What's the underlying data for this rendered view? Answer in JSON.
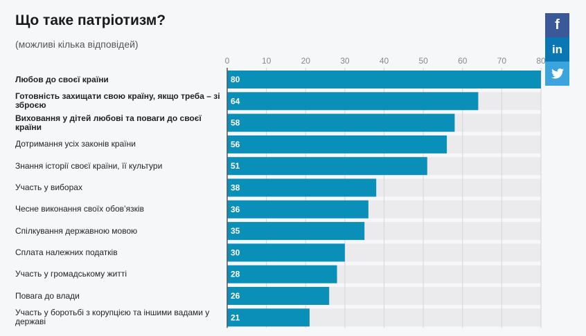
{
  "header": {
    "title": "Що таке патріотизм?",
    "subtitle": "(можливі кілька відповідей)"
  },
  "social": {
    "facebook": "f",
    "linkedin": "in",
    "twitter_icon": "twitter-icon"
  },
  "colors": {
    "bar": "#0a8fb8",
    "track": "#ebebed",
    "axis": "#555555"
  },
  "chart_data": {
    "type": "bar",
    "orientation": "horizontal",
    "title": "Що таке патріотизм?",
    "subtitle": "(можливі кілька відповідей)",
    "xlim": [
      0,
      80
    ],
    "x_ticks": [
      0,
      10,
      20,
      30,
      40,
      50,
      60,
      70,
      80
    ],
    "grid": true,
    "categories": [
      "Любов до своєї країни",
      "Готовність захищати свою країну, якщо треба – зі зброєю",
      "Виховання у дітей любові та поваги до своєї країни",
      "Дотримання усіх законів країни",
      "Знання історії своєї країни, її культури",
      "Участь у виборах",
      "Чесне виконання своїх обов’язків",
      "Спілкування державною мовою",
      "Сплата належних податків",
      "Участь у громадському житті",
      "Повага до влади",
      "Участь у боротьбі з корупцією та іншими вадами у державі"
    ],
    "bold_categories": [
      0,
      1,
      2
    ],
    "values": [
      80,
      64,
      58,
      56,
      51,
      38,
      36,
      35,
      30,
      28,
      26,
      21
    ]
  }
}
